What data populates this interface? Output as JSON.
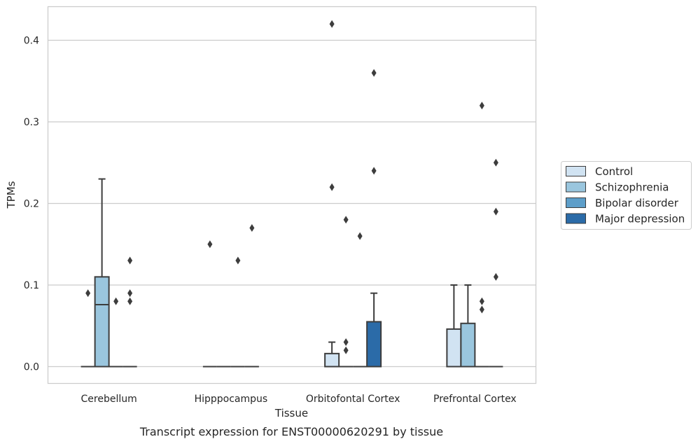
{
  "chart_data": {
    "type": "box",
    "title": "",
    "caption": "Transcript expression for ENST00000620291 by tissue",
    "xlabel": "Tissue",
    "ylabel": "TPMs",
    "ylim": [
      -0.02,
      0.44
    ],
    "yticks": [
      0.0,
      0.1,
      0.2,
      0.3,
      0.4
    ],
    "ytick_labels": [
      "0.0",
      "0.1",
      "0.2",
      "0.3",
      "0.4"
    ],
    "grid": true,
    "legend_position": "right",
    "categories": [
      "Cerebellum",
      "Hipppocampus",
      "Orbitofontal Cortex",
      "Prefrontal Cortex"
    ],
    "series": [
      {
        "name": "Control",
        "color": "#d1e3f2",
        "boxes": [
          {
            "whislo": 0,
            "q1": 0,
            "med": 0,
            "q3": 0,
            "whishi": 0,
            "fliers": [
              0.09
            ]
          },
          {
            "whislo": 0,
            "q1": 0,
            "med": 0,
            "q3": 0,
            "whishi": 0,
            "fliers": [
              0.15
            ]
          },
          {
            "whislo": 0,
            "q1": 0,
            "med": 0,
            "q3": 0.016,
            "whishi": 0.03,
            "fliers": [
              0.42,
              0.22
            ]
          },
          {
            "whislo": 0,
            "q1": 0,
            "med": 0,
            "q3": 0.046,
            "whishi": 0.1,
            "fliers": []
          }
        ]
      },
      {
        "name": "Schizophrenia",
        "color": "#9ac6de",
        "boxes": [
          {
            "whislo": 0,
            "q1": 0,
            "med": 0.076,
            "q3": 0.11,
            "whishi": 0.23,
            "fliers": []
          },
          {
            "whislo": 0,
            "q1": 0,
            "med": 0,
            "q3": 0,
            "whishi": 0,
            "fliers": []
          },
          {
            "whislo": 0,
            "q1": 0,
            "med": 0,
            "q3": 0,
            "whishi": 0,
            "fliers": [
              0.03,
              0.02,
              0.18
            ]
          },
          {
            "whislo": 0,
            "q1": 0,
            "med": 0,
            "q3": 0.053,
            "whishi": 0.1,
            "fliers": []
          }
        ]
      },
      {
        "name": "Bipolar disorder",
        "color": "#5d9ec9",
        "boxes": [
          {
            "whislo": 0,
            "q1": 0,
            "med": 0,
            "q3": 0,
            "whishi": 0,
            "fliers": [
              0.08
            ]
          },
          {
            "whislo": 0,
            "q1": 0,
            "med": 0,
            "q3": 0,
            "whishi": 0,
            "fliers": [
              0.13
            ]
          },
          {
            "whislo": 0,
            "q1": 0,
            "med": 0,
            "q3": 0,
            "whishi": 0,
            "fliers": [
              0.16
            ]
          },
          {
            "whislo": 0,
            "q1": 0,
            "med": 0,
            "q3": 0,
            "whishi": 0,
            "fliers": [
              0.32,
              0.08,
              0.07
            ]
          }
        ]
      },
      {
        "name": "Major depression",
        "color": "#2b6ba8",
        "boxes": [
          {
            "whislo": 0,
            "q1": 0,
            "med": 0,
            "q3": 0,
            "whishi": 0,
            "fliers": [
              0.13,
              0.09,
              0.08
            ]
          },
          {
            "whislo": 0,
            "q1": 0,
            "med": 0,
            "q3": 0,
            "whishi": 0,
            "fliers": [
              0.17
            ]
          },
          {
            "whislo": 0,
            "q1": 0,
            "med": 0,
            "q3": 0.055,
            "whishi": 0.09,
            "fliers": [
              0.36,
              0.24
            ]
          },
          {
            "whislo": 0,
            "q1": 0,
            "med": 0,
            "q3": 0,
            "whishi": 0,
            "fliers": [
              0.25,
              0.19,
              0.11
            ]
          }
        ]
      }
    ]
  }
}
